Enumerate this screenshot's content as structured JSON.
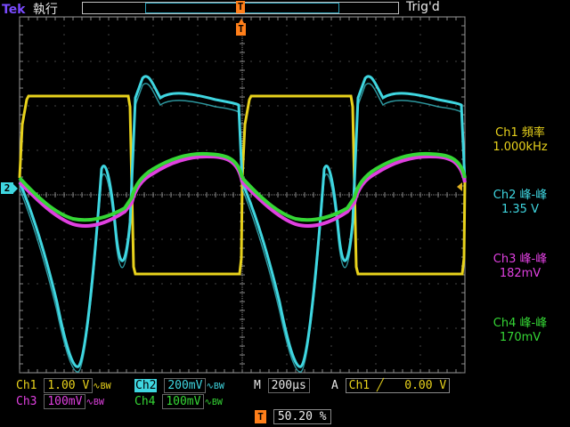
{
  "header": {
    "brand": "Tek",
    "run_state": "執行",
    "trigger_status": "Trig'd",
    "trigger_marker": "T"
  },
  "markers": {
    "time_ref": "T",
    "ch2_ground": "2"
  },
  "measurements": [
    {
      "label": "Ch1 頻率",
      "value": "1.000kHz",
      "color": "#e8d21c"
    },
    {
      "label": "Ch2 峰-峰",
      "value": "1.35 V",
      "color": "#3fd6e0"
    },
    {
      "label": "Ch3 峰-峰",
      "value": "182mV",
      "color": "#e040e0"
    },
    {
      "label": "Ch4 峰-峰",
      "value": "170mV",
      "color": "#35d635"
    }
  ],
  "channels": {
    "ch1": {
      "label": "Ch1",
      "scale": "1.00 V",
      "coupling": "∿BW",
      "color": "#e8d21c"
    },
    "ch2": {
      "label": "Ch2",
      "scale": "200mV",
      "coupling": "∿BW",
      "color": "#3fd6e0"
    },
    "ch3": {
      "label": "Ch3",
      "scale": "100mV",
      "coupling": "∿BW",
      "color": "#e040e0"
    },
    "ch4": {
      "label": "Ch4",
      "scale": "100mV",
      "coupling": "∿BW",
      "color": "#35d635"
    }
  },
  "timebase": {
    "label": "M",
    "value": "200µs"
  },
  "trigger": {
    "source_prefix": "A",
    "source": "Ch1",
    "slope": "╱",
    "level": "0.00 V"
  },
  "trigger_position": {
    "icon": "T",
    "value": "50.20 %"
  }
}
